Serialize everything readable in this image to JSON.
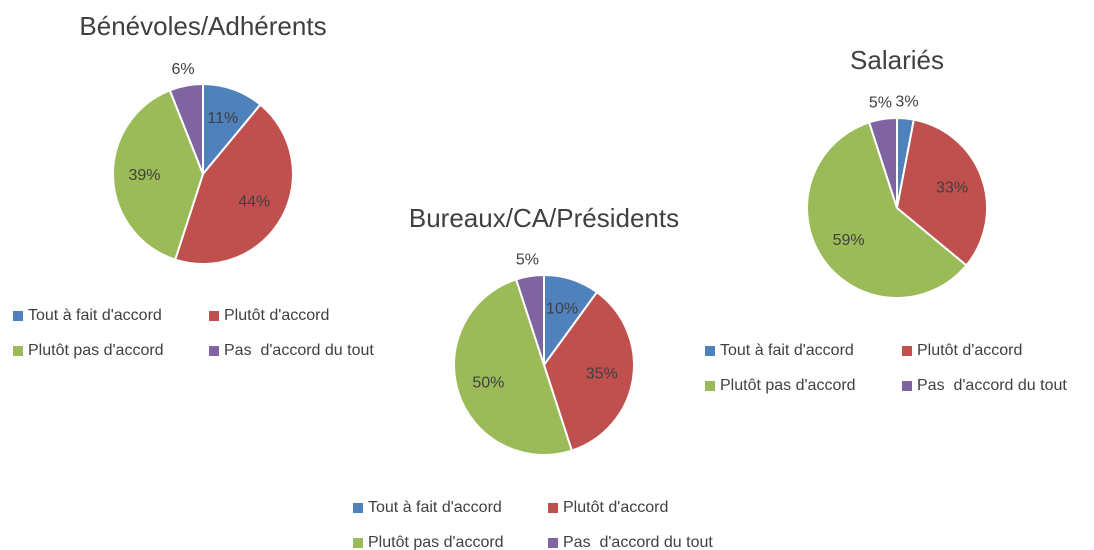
{
  "chart_data": [
    {
      "type": "pie",
      "title": "Bénévoles/Adhérents",
      "categories": [
        "Tout à fait d'accord",
        "Plutôt d'accord",
        "Plutôt pas d'accord",
        "Pas  d'accord du tout"
      ],
      "values": [
        11,
        44,
        39,
        6
      ],
      "value_labels": [
        "11%",
        "44%",
        "39%",
        "6%"
      ],
      "colors": [
        "#4f81bd",
        "#c0504d",
        "#9bbb59",
        "#8064a2"
      ]
    },
    {
      "type": "pie",
      "title": "Bureaux/CA/Présidents",
      "categories": [
        "Tout à fait d'accord",
        "Plutôt d'accord",
        "Plutôt pas d'accord",
        "Pas  d'accord du tout"
      ],
      "values": [
        10,
        35,
        50,
        5
      ],
      "value_labels": [
        "10%",
        "35%",
        "50%",
        "5%"
      ],
      "colors": [
        "#4f81bd",
        "#c0504d",
        "#9bbb59",
        "#8064a2"
      ]
    },
    {
      "type": "pie",
      "title": "Salariés",
      "categories": [
        "Tout à fait d'accord",
        "Plutôt d'accord",
        "Plutôt pas d'accord",
        "Pas  d'accord du tout"
      ],
      "values": [
        3,
        33,
        59,
        5
      ],
      "value_labels": [
        "3%",
        "33%",
        "59%",
        "5%"
      ],
      "colors": [
        "#4f81bd",
        "#c0504d",
        "#9bbb59",
        "#8064a2"
      ]
    }
  ]
}
